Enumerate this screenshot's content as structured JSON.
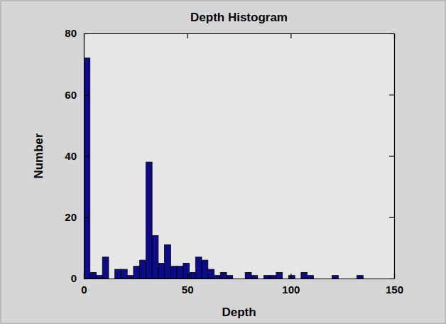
{
  "chart_data": {
    "type": "histogram",
    "title": "Depth Histogram",
    "x_label": "Depth",
    "y_label": "Number",
    "bins": [
      0,
      3,
      6,
      9,
      12,
      15,
      18,
      21,
      24,
      27,
      30,
      33,
      36,
      39,
      42,
      45,
      48,
      51,
      54,
      57,
      60,
      63,
      66,
      69,
      72,
      75,
      78,
      81,
      84,
      87,
      90,
      93,
      96,
      99,
      102,
      105,
      108,
      111,
      114,
      117,
      120,
      123,
      126,
      129,
      132,
      135,
      138,
      141,
      144,
      147,
      150
    ],
    "values": [
      72,
      2,
      1,
      7,
      0,
      3,
      3,
      1,
      4,
      6,
      38,
      14,
      5,
      11,
      4,
      4,
      5,
      2,
      7,
      6,
      3,
      1,
      2,
      1,
      0,
      0,
      2,
      1,
      0,
      1,
      1,
      2,
      0,
      1,
      0,
      2,
      1,
      0,
      0,
      0,
      1,
      0,
      0,
      0,
      1,
      0,
      0,
      0,
      0,
      0
    ],
    "color": "#0c0c8a",
    "xlim": [
      0,
      150
    ],
    "xticks": [
      0,
      50,
      100,
      150
    ],
    "ylim": [
      0,
      80
    ],
    "yticks": [
      0,
      20,
      40,
      60,
      80
    ],
    "grid": false
  }
}
